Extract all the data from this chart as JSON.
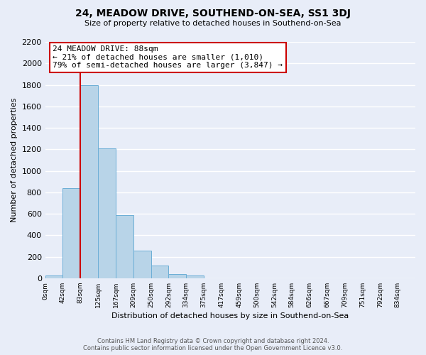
{
  "title": "24, MEADOW DRIVE, SOUTHEND-ON-SEA, SS1 3DJ",
  "subtitle": "Size of property relative to detached houses in Southend-on-Sea",
  "xlabel": "Distribution of detached houses by size in Southend-on-Sea",
  "ylabel": "Number of detached properties",
  "bar_values": [
    25,
    835,
    1800,
    1210,
    585,
    255,
    115,
    40,
    25,
    0,
    0,
    0,
    0,
    0,
    0,
    0,
    0,
    0,
    0,
    0,
    0
  ],
  "bar_labels": [
    "0sqm",
    "42sqm",
    "83sqm",
    "125sqm",
    "167sqm",
    "209sqm",
    "250sqm",
    "292sqm",
    "334sqm",
    "375sqm",
    "417sqm",
    "459sqm",
    "500sqm",
    "542sqm",
    "584sqm",
    "626sqm",
    "667sqm",
    "709sqm",
    "751sqm",
    "792sqm",
    "834sqm"
  ],
  "bar_color": "#b8d4e8",
  "bar_edge_color": "#6baed6",
  "vline_x": 2,
  "vline_color": "#cc0000",
  "annotation_title": "24 MEADOW DRIVE: 88sqm",
  "annotation_line1": "← 21% of detached houses are smaller (1,010)",
  "annotation_line2": "79% of semi-detached houses are larger (3,847) →",
  "annotation_box_color": "#ffffff",
  "annotation_box_edge": "#cc0000",
  "ylim": [
    0,
    2200
  ],
  "yticks": [
    0,
    200,
    400,
    600,
    800,
    1000,
    1200,
    1400,
    1600,
    1800,
    2000,
    2200
  ],
  "bg_color": "#e8edf8",
  "grid_color": "#ffffff",
  "footer_line1": "Contains HM Land Registry data © Crown copyright and database right 2024.",
  "footer_line2": "Contains public sector information licensed under the Open Government Licence v3.0."
}
